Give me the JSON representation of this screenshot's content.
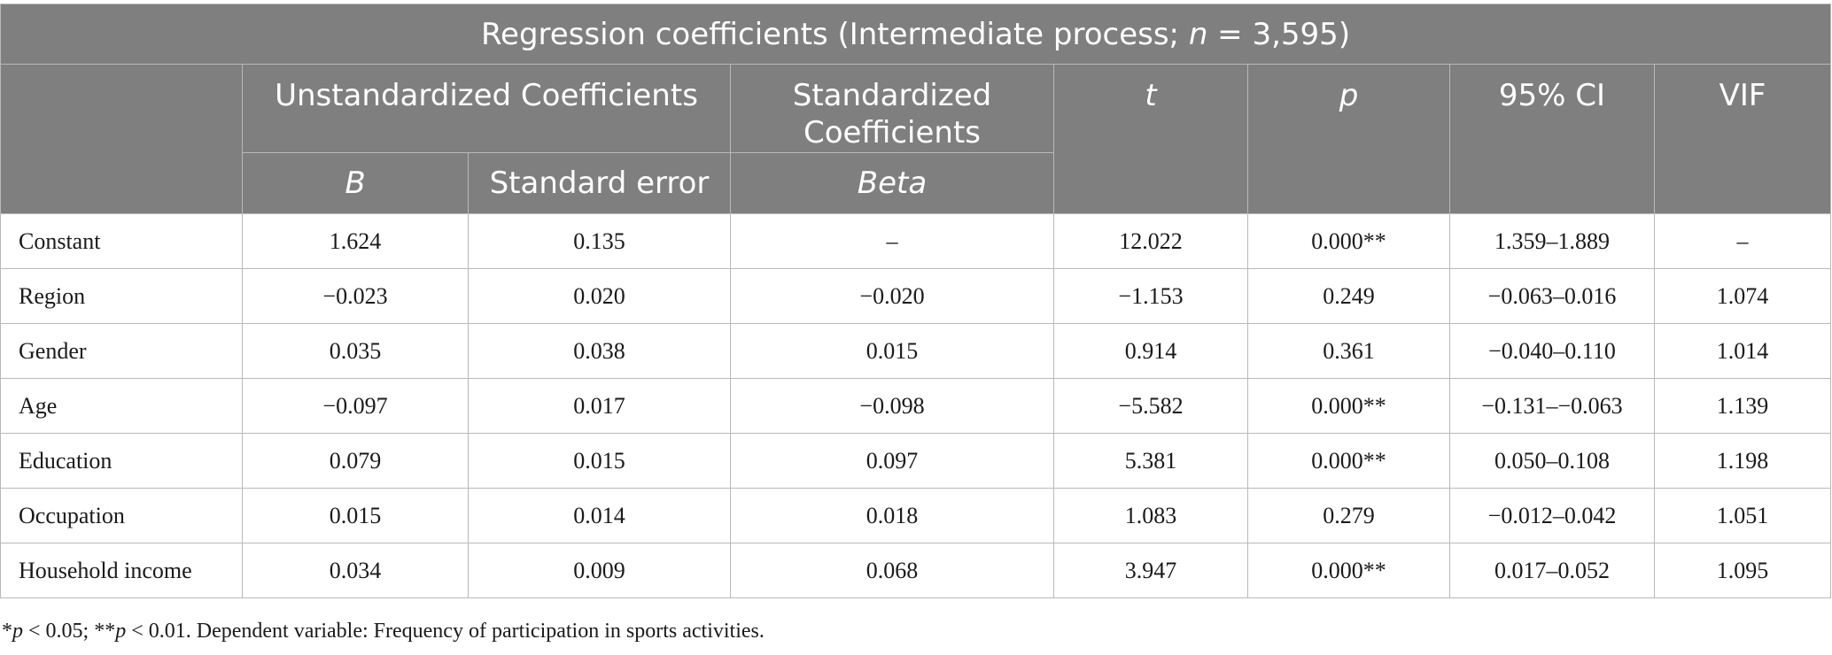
{
  "table": {
    "title_prefix": "Regression coefficients (Intermediate process; ",
    "title_n": "n",
    "title_suffix": " = 3,595)",
    "headers": {
      "unstandardized": "Unstandardized Coefficients",
      "standardized": "Standardized Coefficients",
      "t": "t",
      "p": "p",
      "ci": "95% CI",
      "vif": "VIF",
      "b": "B",
      "se": "Standard error",
      "beta": "Beta"
    },
    "rows": [
      {
        "label": "Constant",
        "b": "1.624",
        "se": "0.135",
        "beta": "–",
        "t": "12.022",
        "p": "0.000**",
        "ci": "1.359–1.889",
        "vif": "–"
      },
      {
        "label": "Region",
        "b": "−0.023",
        "se": "0.020",
        "beta": "−0.020",
        "t": "−1.153",
        "p": "0.249",
        "ci": "−0.063–0.016",
        "vif": "1.074"
      },
      {
        "label": "Gender",
        "b": "0.035",
        "se": "0.038",
        "beta": "0.015",
        "t": "0.914",
        "p": "0.361",
        "ci": "−0.040–0.110",
        "vif": "1.014"
      },
      {
        "label": "Age",
        "b": "−0.097",
        "se": "0.017",
        "beta": "−0.098",
        "t": "−5.582",
        "p": "0.000**",
        "ci": "−0.131–−0.063",
        "vif": "1.139"
      },
      {
        "label": "Education",
        "b": "0.079",
        "se": "0.015",
        "beta": "0.097",
        "t": "5.381",
        "p": "0.000**",
        "ci": "0.050–0.108",
        "vif": "1.198"
      },
      {
        "label": "Occupation",
        "b": "0.015",
        "se": "0.014",
        "beta": "0.018",
        "t": "1.083",
        "p": "0.279",
        "ci": "−0.012–0.042",
        "vif": "1.051"
      },
      {
        "label": "Household income",
        "b": "0.034",
        "se": "0.009",
        "beta": "0.068",
        "t": "3.947",
        "p": "0.000**",
        "ci": "0.017–0.052",
        "vif": "1.095"
      }
    ]
  },
  "footnote": {
    "p1_var": "p",
    "p1_text": " < 0.05; **",
    "p2_var": "p",
    "p2_text": " < 0.01. Dependent variable: Frequency of participation in sports activities."
  }
}
